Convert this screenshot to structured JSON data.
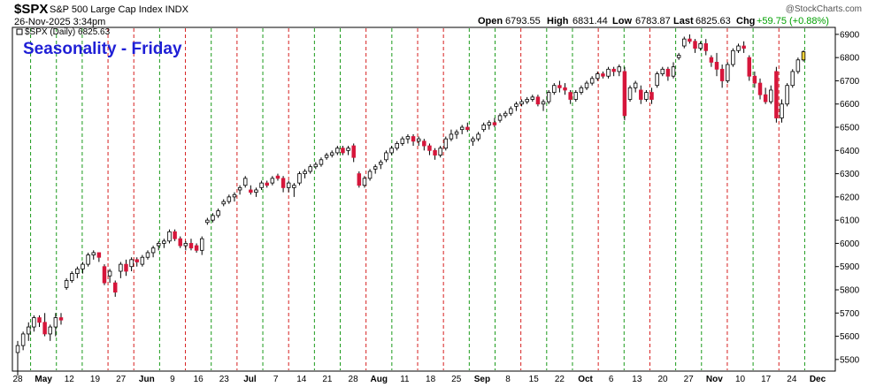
{
  "header": {
    "symbol": "$SPX",
    "name": "S&P 500 Large Cap Index INDX",
    "timestamp": "26-Nov-2025 3:34pm",
    "open_label": "Open",
    "open_value": "6793.55",
    "high_label": "High",
    "high_value": "6831.44",
    "low_label": "Low",
    "low_value": "6783.87",
    "last_label": "Last",
    "last_value": "6825.63",
    "chg_label": "Chg",
    "chg_value": "+59.75 (+0.88%)",
    "brand": "@StockCharts.com"
  },
  "chart_data": {
    "type": "candlestick",
    "title": "Seasonality - Friday",
    "legend": "$SPX (Daily) 6825.63",
    "y_ticks": [
      5500,
      5600,
      5700,
      5800,
      5900,
      6000,
      6100,
      6200,
      6300,
      6400,
      6500,
      6600,
      6700,
      6800,
      6900
    ],
    "ylim": [
      5450,
      6930
    ],
    "x_ticks": [
      {
        "label": "28",
        "bold": false
      },
      {
        "label": "May",
        "bold": true
      },
      {
        "label": "12",
        "bold": false
      },
      {
        "label": "19",
        "bold": false
      },
      {
        "label": "27",
        "bold": false
      },
      {
        "label": "Jun",
        "bold": true
      },
      {
        "label": "9",
        "bold": false
      },
      {
        "label": "16",
        "bold": false
      },
      {
        "label": "23",
        "bold": false
      },
      {
        "label": "Jul",
        "bold": true
      },
      {
        "label": "7",
        "bold": false
      },
      {
        "label": "14",
        "bold": false
      },
      {
        "label": "21",
        "bold": false
      },
      {
        "label": "28",
        "bold": false
      },
      {
        "label": "Aug",
        "bold": true
      },
      {
        "label": "11",
        "bold": false
      },
      {
        "label": "18",
        "bold": false
      },
      {
        "label": "25",
        "bold": false
      },
      {
        "label": "Sep",
        "bold": true
      },
      {
        "label": "8",
        "bold": false
      },
      {
        "label": "15",
        "bold": false
      },
      {
        "label": "22",
        "bold": false
      },
      {
        "label": "Oct",
        "bold": true
      },
      {
        "label": "6",
        "bold": false
      },
      {
        "label": "13",
        "bold": false
      },
      {
        "label": "20",
        "bold": false
      },
      {
        "label": "27",
        "bold": false
      },
      {
        "label": "Nov",
        "bold": true
      },
      {
        "label": "10",
        "bold": false
      },
      {
        "label": "17",
        "bold": false
      },
      {
        "label": "24",
        "bold": false
      },
      {
        "label": "Dec",
        "bold": true
      }
    ],
    "vertical_markers": [
      "green",
      "green",
      "green",
      "red",
      "red",
      "green",
      "red",
      "green",
      "red",
      "green",
      "red",
      "green",
      "green",
      "red",
      "green",
      "red",
      "red",
      "green",
      "green",
      "red",
      "green",
      "green",
      "red",
      "green",
      "red",
      "green",
      "green",
      "red",
      "green",
      "red",
      "green"
    ],
    "colors": {
      "up": "#ffffff",
      "down": "#d6163b",
      "marker_green": "#1a9a1a",
      "marker_red": "#d61f1f",
      "highlight": "#f5d23a",
      "outline": "#000000"
    },
    "candles": [
      [
        5530,
        5580,
        5430,
        5560
      ],
      [
        5560,
        5620,
        5540,
        5610
      ],
      [
        5610,
        5660,
        5580,
        5640
      ],
      [
        5640,
        5690,
        5620,
        5680
      ],
      [
        5680,
        5690,
        5640,
        5660
      ],
      [
        5660,
        5700,
        5600,
        5610
      ],
      [
        5610,
        5650,
        5580,
        5640
      ],
      [
        5640,
        5700,
        5600,
        5680
      ],
      [
        5680,
        5700,
        5650,
        5670
      ],
      [
        5810,
        5850,
        5800,
        5840
      ],
      [
        5840,
        5880,
        5830,
        5870
      ],
      [
        5870,
        5900,
        5850,
        5890
      ],
      [
        5890,
        5920,
        5870,
        5910
      ],
      [
        5910,
        5960,
        5900,
        5950
      ],
      [
        5950,
        5970,
        5930,
        5960
      ],
      [
        5960,
        5960,
        5920,
        5940
      ],
      [
        5900,
        5910,
        5820,
        5830
      ],
      [
        5860,
        5890,
        5830,
        5880
      ],
      [
        5830,
        5840,
        5770,
        5790
      ],
      [
        5880,
        5920,
        5850,
        5910
      ],
      [
        5910,
        5930,
        5860,
        5880
      ],
      [
        5900,
        5940,
        5880,
        5930
      ],
      [
        5930,
        5940,
        5900,
        5920
      ],
      [
        5910,
        5950,
        5900,
        5940
      ],
      [
        5940,
        5970,
        5930,
        5960
      ],
      [
        5960,
        5990,
        5940,
        5980
      ],
      [
        5990,
        6010,
        5970,
        6000
      ],
      [
        6000,
        6020,
        5980,
        6010
      ],
      [
        6010,
        6060,
        6000,
        6050
      ],
      [
        6050,
        6060,
        6010,
        6020
      ],
      [
        6020,
        6030,
        5980,
        5990
      ],
      [
        5990,
        6010,
        5970,
        6000
      ],
      [
        6000,
        6020,
        5970,
        5980
      ],
      [
        5990,
        6000,
        5960,
        5970
      ],
      [
        5970,
        6030,
        5950,
        6020
      ],
      [
        6090,
        6110,
        6080,
        6100
      ],
      [
        6100,
        6130,
        6090,
        6120
      ],
      [
        6120,
        6150,
        6110,
        6140
      ],
      [
        6170,
        6190,
        6160,
        6180
      ],
      [
        6180,
        6210,
        6170,
        6200
      ],
      [
        6200,
        6220,
        6180,
        6210
      ],
      [
        6230,
        6250,
        6210,
        6240
      ],
      [
        6250,
        6290,
        6240,
        6280
      ],
      [
        6230,
        6250,
        6210,
        6220
      ],
      [
        6220,
        6240,
        6200,
        6230
      ],
      [
        6240,
        6270,
        6230,
        6260
      ],
      [
        6260,
        6270,
        6240,
        6250
      ],
      [
        6260,
        6290,
        6250,
        6280
      ],
      [
        6290,
        6300,
        6270,
        6280
      ],
      [
        6280,
        6290,
        6220,
        6240
      ],
      [
        6240,
        6270,
        6220,
        6260
      ],
      [
        6240,
        6260,
        6200,
        6250
      ],
      [
        6260,
        6310,
        6250,
        6300
      ],
      [
        6300,
        6320,
        6280,
        6310
      ],
      [
        6310,
        6340,
        6300,
        6330
      ],
      [
        6330,
        6350,
        6320,
        6340
      ],
      [
        6340,
        6370,
        6330,
        6360
      ],
      [
        6370,
        6390,
        6360,
        6380
      ],
      [
        6380,
        6400,
        6370,
        6390
      ],
      [
        6390,
        6420,
        6380,
        6410
      ],
      [
        6410,
        6420,
        6380,
        6390
      ],
      [
        6400,
        6420,
        6380,
        6410
      ],
      [
        6420,
        6430,
        6350,
        6370
      ],
      [
        6300,
        6310,
        6240,
        6250
      ],
      [
        6250,
        6290,
        6240,
        6280
      ],
      [
        6280,
        6320,
        6270,
        6310
      ],
      [
        6320,
        6340,
        6300,
        6330
      ],
      [
        6340,
        6360,
        6320,
        6350
      ],
      [
        6360,
        6400,
        6350,
        6390
      ],
      [
        6390,
        6420,
        6380,
        6410
      ],
      [
        6410,
        6440,
        6400,
        6430
      ],
      [
        6430,
        6460,
        6420,
        6450
      ],
      [
        6450,
        6470,
        6430,
        6460
      ],
      [
        6460,
        6470,
        6420,
        6440
      ],
      [
        6440,
        6460,
        6420,
        6450
      ],
      [
        6440,
        6450,
        6400,
        6420
      ],
      [
        6420,
        6430,
        6380,
        6400
      ],
      [
        6400,
        6410,
        6360,
        6380
      ],
      [
        6380,
        6420,
        6370,
        6410
      ],
      [
        6410,
        6460,
        6400,
        6450
      ],
      [
        6450,
        6490,
        6440,
        6470
      ],
      [
        6470,
        6490,
        6450,
        6480
      ],
      [
        6490,
        6510,
        6470,
        6500
      ],
      [
        6500,
        6520,
        6480,
        6490
      ],
      [
        6440,
        6460,
        6420,
        6450
      ],
      [
        6450,
        6480,
        6440,
        6470
      ],
      [
        6490,
        6520,
        6480,
        6510
      ],
      [
        6510,
        6530,
        6490,
        6520
      ],
      [
        6520,
        6540,
        6500,
        6510
      ],
      [
        6530,
        6560,
        6520,
        6550
      ],
      [
        6550,
        6570,
        6540,
        6560
      ],
      [
        6560,
        6590,
        6550,
        6580
      ],
      [
        6590,
        6610,
        6570,
        6600
      ],
      [
        6600,
        6620,
        6590,
        6610
      ],
      [
        6610,
        6630,
        6600,
        6620
      ],
      [
        6620,
        6640,
        6610,
        6630
      ],
      [
        6630,
        6640,
        6590,
        6600
      ],
      [
        6600,
        6620,
        6570,
        6610
      ],
      [
        6610,
        6660,
        6600,
        6650
      ],
      [
        6650,
        6690,
        6640,
        6680
      ],
      [
        6680,
        6700,
        6650,
        6670
      ],
      [
        6670,
        6690,
        6640,
        6660
      ],
      [
        6650,
        6660,
        6600,
        6620
      ],
      [
        6620,
        6660,
        6610,
        6650
      ],
      [
        6650,
        6680,
        6640,
        6670
      ],
      [
        6670,
        6700,
        6660,
        6690
      ],
      [
        6690,
        6720,
        6680,
        6710
      ],
      [
        6710,
        6740,
        6700,
        6730
      ],
      [
        6730,
        6740,
        6710,
        6720
      ],
      [
        6720,
        6760,
        6710,
        6750
      ],
      [
        6750,
        6760,
        6720,
        6740
      ],
      [
        6740,
        6770,
        6720,
        6760
      ],
      [
        6740,
        6760,
        6530,
        6550
      ],
      [
        6620,
        6680,
        6610,
        6670
      ],
      [
        6670,
        6700,
        6650,
        6690
      ],
      [
        6660,
        6680,
        6600,
        6620
      ],
      [
        6620,
        6660,
        6610,
        6650
      ],
      [
        6650,
        6670,
        6600,
        6620
      ],
      [
        6680,
        6740,
        6670,
        6730
      ],
      [
        6730,
        6760,
        6720,
        6750
      ],
      [
        6750,
        6760,
        6700,
        6720
      ],
      [
        6720,
        6780,
        6710,
        6760
      ],
      [
        6800,
        6820,
        6790,
        6810
      ],
      [
        6850,
        6890,
        6840,
        6880
      ],
      [
        6880,
        6900,
        6860,
        6870
      ],
      [
        6870,
        6880,
        6820,
        6840
      ],
      [
        6840,
        6870,
        6830,
        6860
      ],
      [
        6860,
        6880,
        6810,
        6830
      ],
      [
        6800,
        6810,
        6760,
        6780
      ],
      [
        6780,
        6820,
        6720,
        6750
      ],
      [
        6750,
        6770,
        6670,
        6700
      ],
      [
        6700,
        6780,
        6690,
        6770
      ],
      [
        6770,
        6840,
        6760,
        6830
      ],
      [
        6830,
        6860,
        6820,
        6850
      ],
      [
        6850,
        6870,
        6820,
        6840
      ],
      [
        6800,
        6810,
        6700,
        6720
      ],
      [
        6720,
        6740,
        6670,
        6690
      ],
      [
        6690,
        6710,
        6620,
        6640
      ],
      [
        6640,
        6670,
        6600,
        6610
      ],
      [
        6610,
        6680,
        6600,
        6660
      ],
      [
        6740,
        6760,
        6520,
        6540
      ],
      [
        6540,
        6620,
        6520,
        6600
      ],
      [
        6600,
        6690,
        6590,
        6680
      ],
      [
        6680,
        6750,
        6670,
        6740
      ],
      [
        6740,
        6800,
        6730,
        6790
      ],
      [
        6790,
        6831,
        6783,
        6825
      ]
    ]
  }
}
